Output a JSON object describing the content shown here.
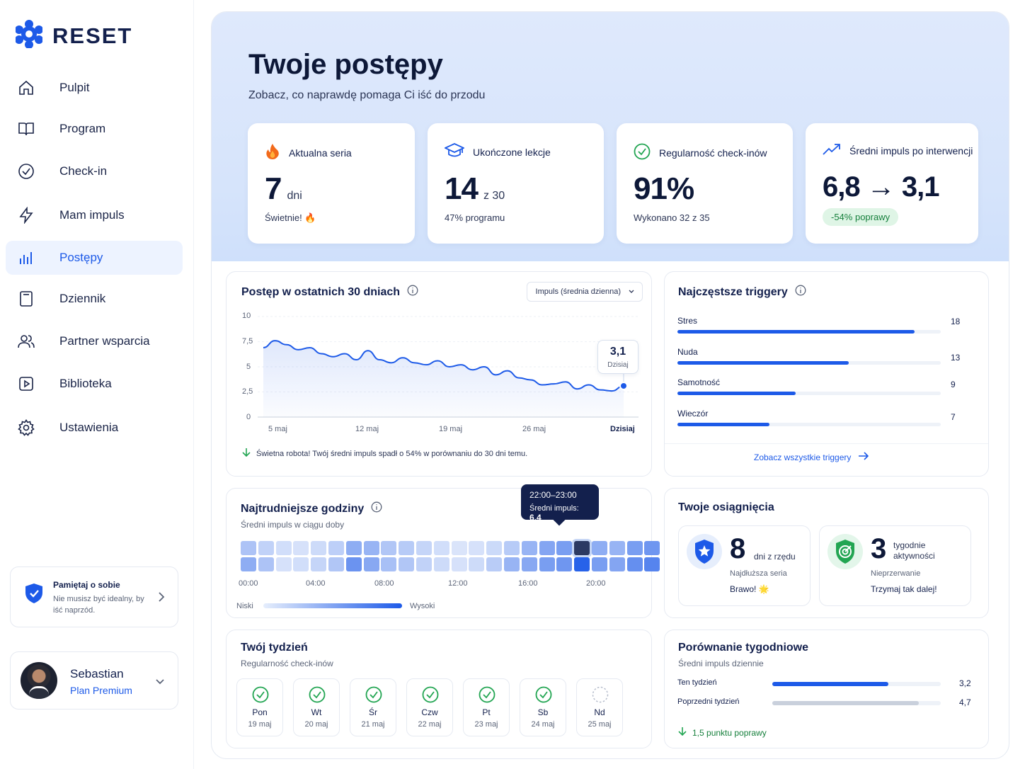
{
  "brand": {
    "name": "RESET"
  },
  "sidebar": {
    "items": [
      {
        "label": "Pulpit",
        "icon": "home-icon"
      },
      {
        "label": "Program",
        "icon": "book-icon"
      },
      {
        "label": "Check-in",
        "icon": "check-circle-icon"
      },
      {
        "label": "Mam impuls",
        "icon": "lightning-icon"
      },
      {
        "label": "Postępy",
        "icon": "bar-chart-icon",
        "active": true
      },
      {
        "label": "Dziennik",
        "icon": "journal-icon"
      },
      {
        "label": "Partner wsparcia",
        "icon": "users-icon"
      },
      {
        "label": "Biblioteka",
        "icon": "play-icon"
      },
      {
        "label": "Ustawienia",
        "icon": "gear-icon"
      }
    ],
    "reminder": {
      "title": "Pamiętaj o sobie",
      "body": "Nie musisz być idealny, by iść naprzód."
    },
    "user": {
      "name": "Sebastian",
      "plan": "Plan Premium"
    }
  },
  "header": {
    "title": "Twoje postępy",
    "subtitle": "Zobacz, co naprawdę pomaga Ci iść do przodu"
  },
  "stats": [
    {
      "label": "Aktualna seria",
      "value": "7",
      "unit": "dni",
      "foot": "Świetnie! 🔥"
    },
    {
      "label": "Ukończone lekcje",
      "value": "14",
      "unit": "z 30",
      "foot": "47% programu"
    },
    {
      "label": "Regularność check-inów",
      "value": "91%",
      "unit": "",
      "foot": "Wykonano 32 z 35"
    },
    {
      "label": "Średni impuls po interwencji",
      "value": "6,8 → 3,1",
      "unit": "",
      "foot": "-54% poprawy"
    }
  ],
  "progress": {
    "title": "Postęp w ostatnich 30 dniach",
    "select": "Impuls (średnia dzienna)",
    "note": "Świetna robota! Twój średni impuls spadł o 54% w porównaniu do 30 dni temu.",
    "tooltip": {
      "value": "3,1",
      "label": "Dzisiaj"
    }
  },
  "chart_data": {
    "type": "area",
    "title": "Postęp w ostatnich 30 dniach",
    "ylim": [
      0,
      10
    ],
    "yticks": [
      "10",
      "7,5",
      "5",
      "2,5",
      "0"
    ],
    "xticks": [
      "5 maj",
      "12 maj",
      "19 maj",
      "26 maj",
      "Dzisiaj"
    ],
    "series": [
      {
        "values": [
          6.9,
          7.6,
          7.2,
          6.7,
          6.9,
          6.3,
          6.0,
          6.3,
          5.7,
          6.6,
          5.7,
          5.4,
          5.9,
          5.4,
          5.2,
          5.6,
          5.0,
          5.2,
          4.7,
          5.0,
          4.2,
          4.6,
          3.9,
          3.7,
          3.2,
          3.3,
          3.5,
          2.8,
          3.2,
          2.7,
          2.6,
          3.1
        ]
      }
    ],
    "heatmap": {
      "title": "Najtrudniejsze godziny",
      "subtitle": "Średni impuls w ciągu doby",
      "xticks": [
        "00:00",
        "04:00",
        "08:00",
        "12:00",
        "16:00",
        "20:00"
      ],
      "legend_low": "Niski",
      "legend_high": "Wysoki",
      "tooltip": {
        "range": "22:00–23:00",
        "label": "Średni impuls:",
        "value": "6,4"
      },
      "rows": [
        [
          0.3,
          0.2,
          0.12,
          0.1,
          0.14,
          0.22,
          0.45,
          0.4,
          0.28,
          0.25,
          0.18,
          0.12,
          0.08,
          0.1,
          0.15,
          0.25,
          0.4,
          0.5,
          0.55,
          1.0,
          0.45,
          0.4,
          0.55,
          0.6
        ],
        [
          0.45,
          0.3,
          0.1,
          0.12,
          0.18,
          0.28,
          0.62,
          0.48,
          0.32,
          0.28,
          0.2,
          0.14,
          0.1,
          0.14,
          0.24,
          0.4,
          0.48,
          0.55,
          0.6,
          0.95,
          0.55,
          0.5,
          0.65,
          0.72
        ]
      ]
    }
  },
  "triggers": {
    "title": "Najczęstsze triggery",
    "items": [
      {
        "name": "Stres",
        "value": 18
      },
      {
        "name": "Nuda",
        "value": 13
      },
      {
        "name": "Samotność",
        "value": 9
      },
      {
        "name": "Wieczór",
        "value": 7
      }
    ],
    "link": "Zobacz wszystkie triggery"
  },
  "achievements": {
    "title": "Twoje osiągnięcia",
    "items": [
      {
        "value": "8",
        "label": "dni z rzędu",
        "sub": "Najdłuższa seria",
        "msg": "Brawo! 🌟"
      },
      {
        "value": "3",
        "label": "tygodnie aktywności",
        "sub": "Nieprzerwanie",
        "msg": "Trzymaj tak dalej!"
      }
    ]
  },
  "week": {
    "title": "Twój tydzień",
    "subtitle": "Regularność check-inów",
    "days": [
      {
        "name": "Pon",
        "date": "19 maj",
        "done": true
      },
      {
        "name": "Wt",
        "date": "20 maj",
        "done": true
      },
      {
        "name": "Śr",
        "date": "21 maj",
        "done": true
      },
      {
        "name": "Czw",
        "date": "22 maj",
        "done": true
      },
      {
        "name": "Pt",
        "date": "23 maj",
        "done": true
      },
      {
        "name": "Sb",
        "date": "24 maj",
        "done": true
      },
      {
        "name": "Nd",
        "date": "25 maj",
        "done": false
      }
    ]
  },
  "comparison": {
    "title": "Porównanie tygodniowe",
    "subtitle": "Średni impuls dziennie",
    "rows": [
      {
        "label": "Ten tydzień",
        "value": "3,2",
        "level": 0.69,
        "color": "#1d5ae8"
      },
      {
        "label": "Poprzedni tydzień",
        "value": "4,7",
        "level": 0.87,
        "color": "#c9d0dc"
      }
    ],
    "note": "1,5 punktu poprawy"
  },
  "colors": {
    "accent": "#1d5ae8",
    "success": "#22a552",
    "dark": "#13204d"
  }
}
